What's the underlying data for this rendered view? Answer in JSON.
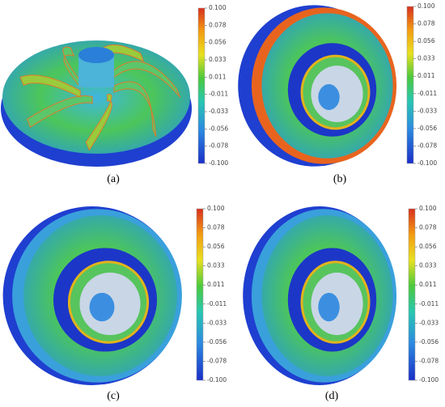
{
  "figure": {
    "panels": [
      {
        "caption": "(a)",
        "colorbar_ticks": [
          "0.100",
          "0.078",
          "0.056",
          "0.033",
          "0.011",
          "-0.011",
          "-0.033",
          "-0.056",
          "-0.078",
          "-0.100"
        ]
      },
      {
        "caption": "(b)",
        "colorbar_ticks": [
          "0.100",
          "0.078",
          "0.056",
          "0.033",
          "0.011",
          "-0.011",
          "-0.033",
          "-0.056",
          "-0.078",
          "-0.100"
        ]
      },
      {
        "caption": "(c)",
        "colorbar_ticks": [
          "0.100",
          "0.078",
          "0.056",
          "0.033",
          "0.011",
          "-0.011",
          "-0.033",
          "-0.056",
          "-0.078",
          "-0.100"
        ]
      },
      {
        "caption": "(d)",
        "colorbar_ticks": [
          "0.100",
          "0.078",
          "0.056",
          "0.033",
          "0.011",
          "-0.011",
          "-0.033",
          "-0.056",
          "-0.078",
          "-0.100"
        ]
      }
    ]
  }
}
